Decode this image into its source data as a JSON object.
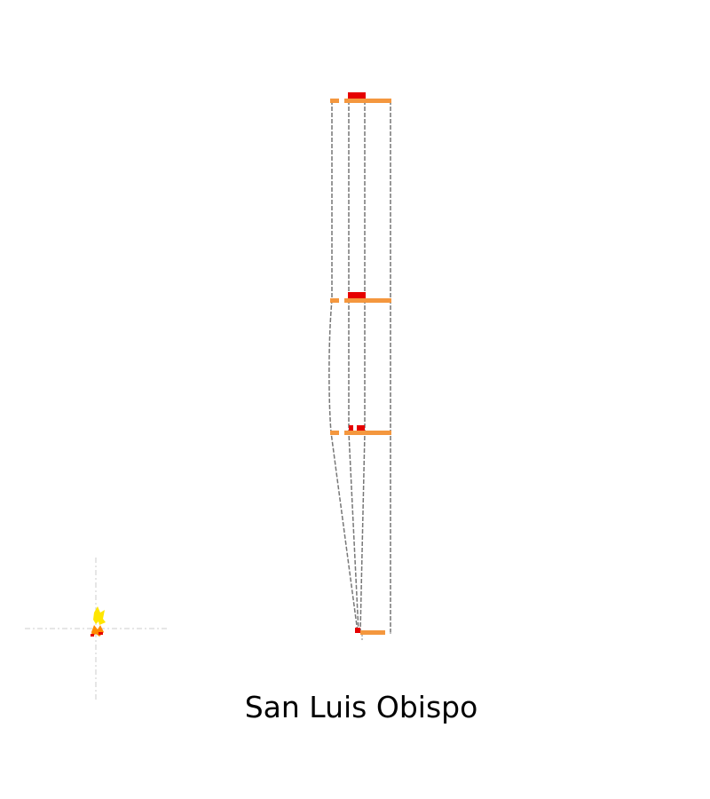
{
  "title": "San Luis Obispo",
  "colors": {
    "background": "#ffffff",
    "frame_line": "#777777",
    "slab_bar": "#f4973e",
    "markers": "#e60000",
    "flame_yellow": "#ffe600",
    "flame_orange": "#ff8a00",
    "crosshair": "#cccccc"
  },
  "icons": {
    "fire_icon": "flame-icon",
    "target_icon": "crosshair-icon"
  }
}
